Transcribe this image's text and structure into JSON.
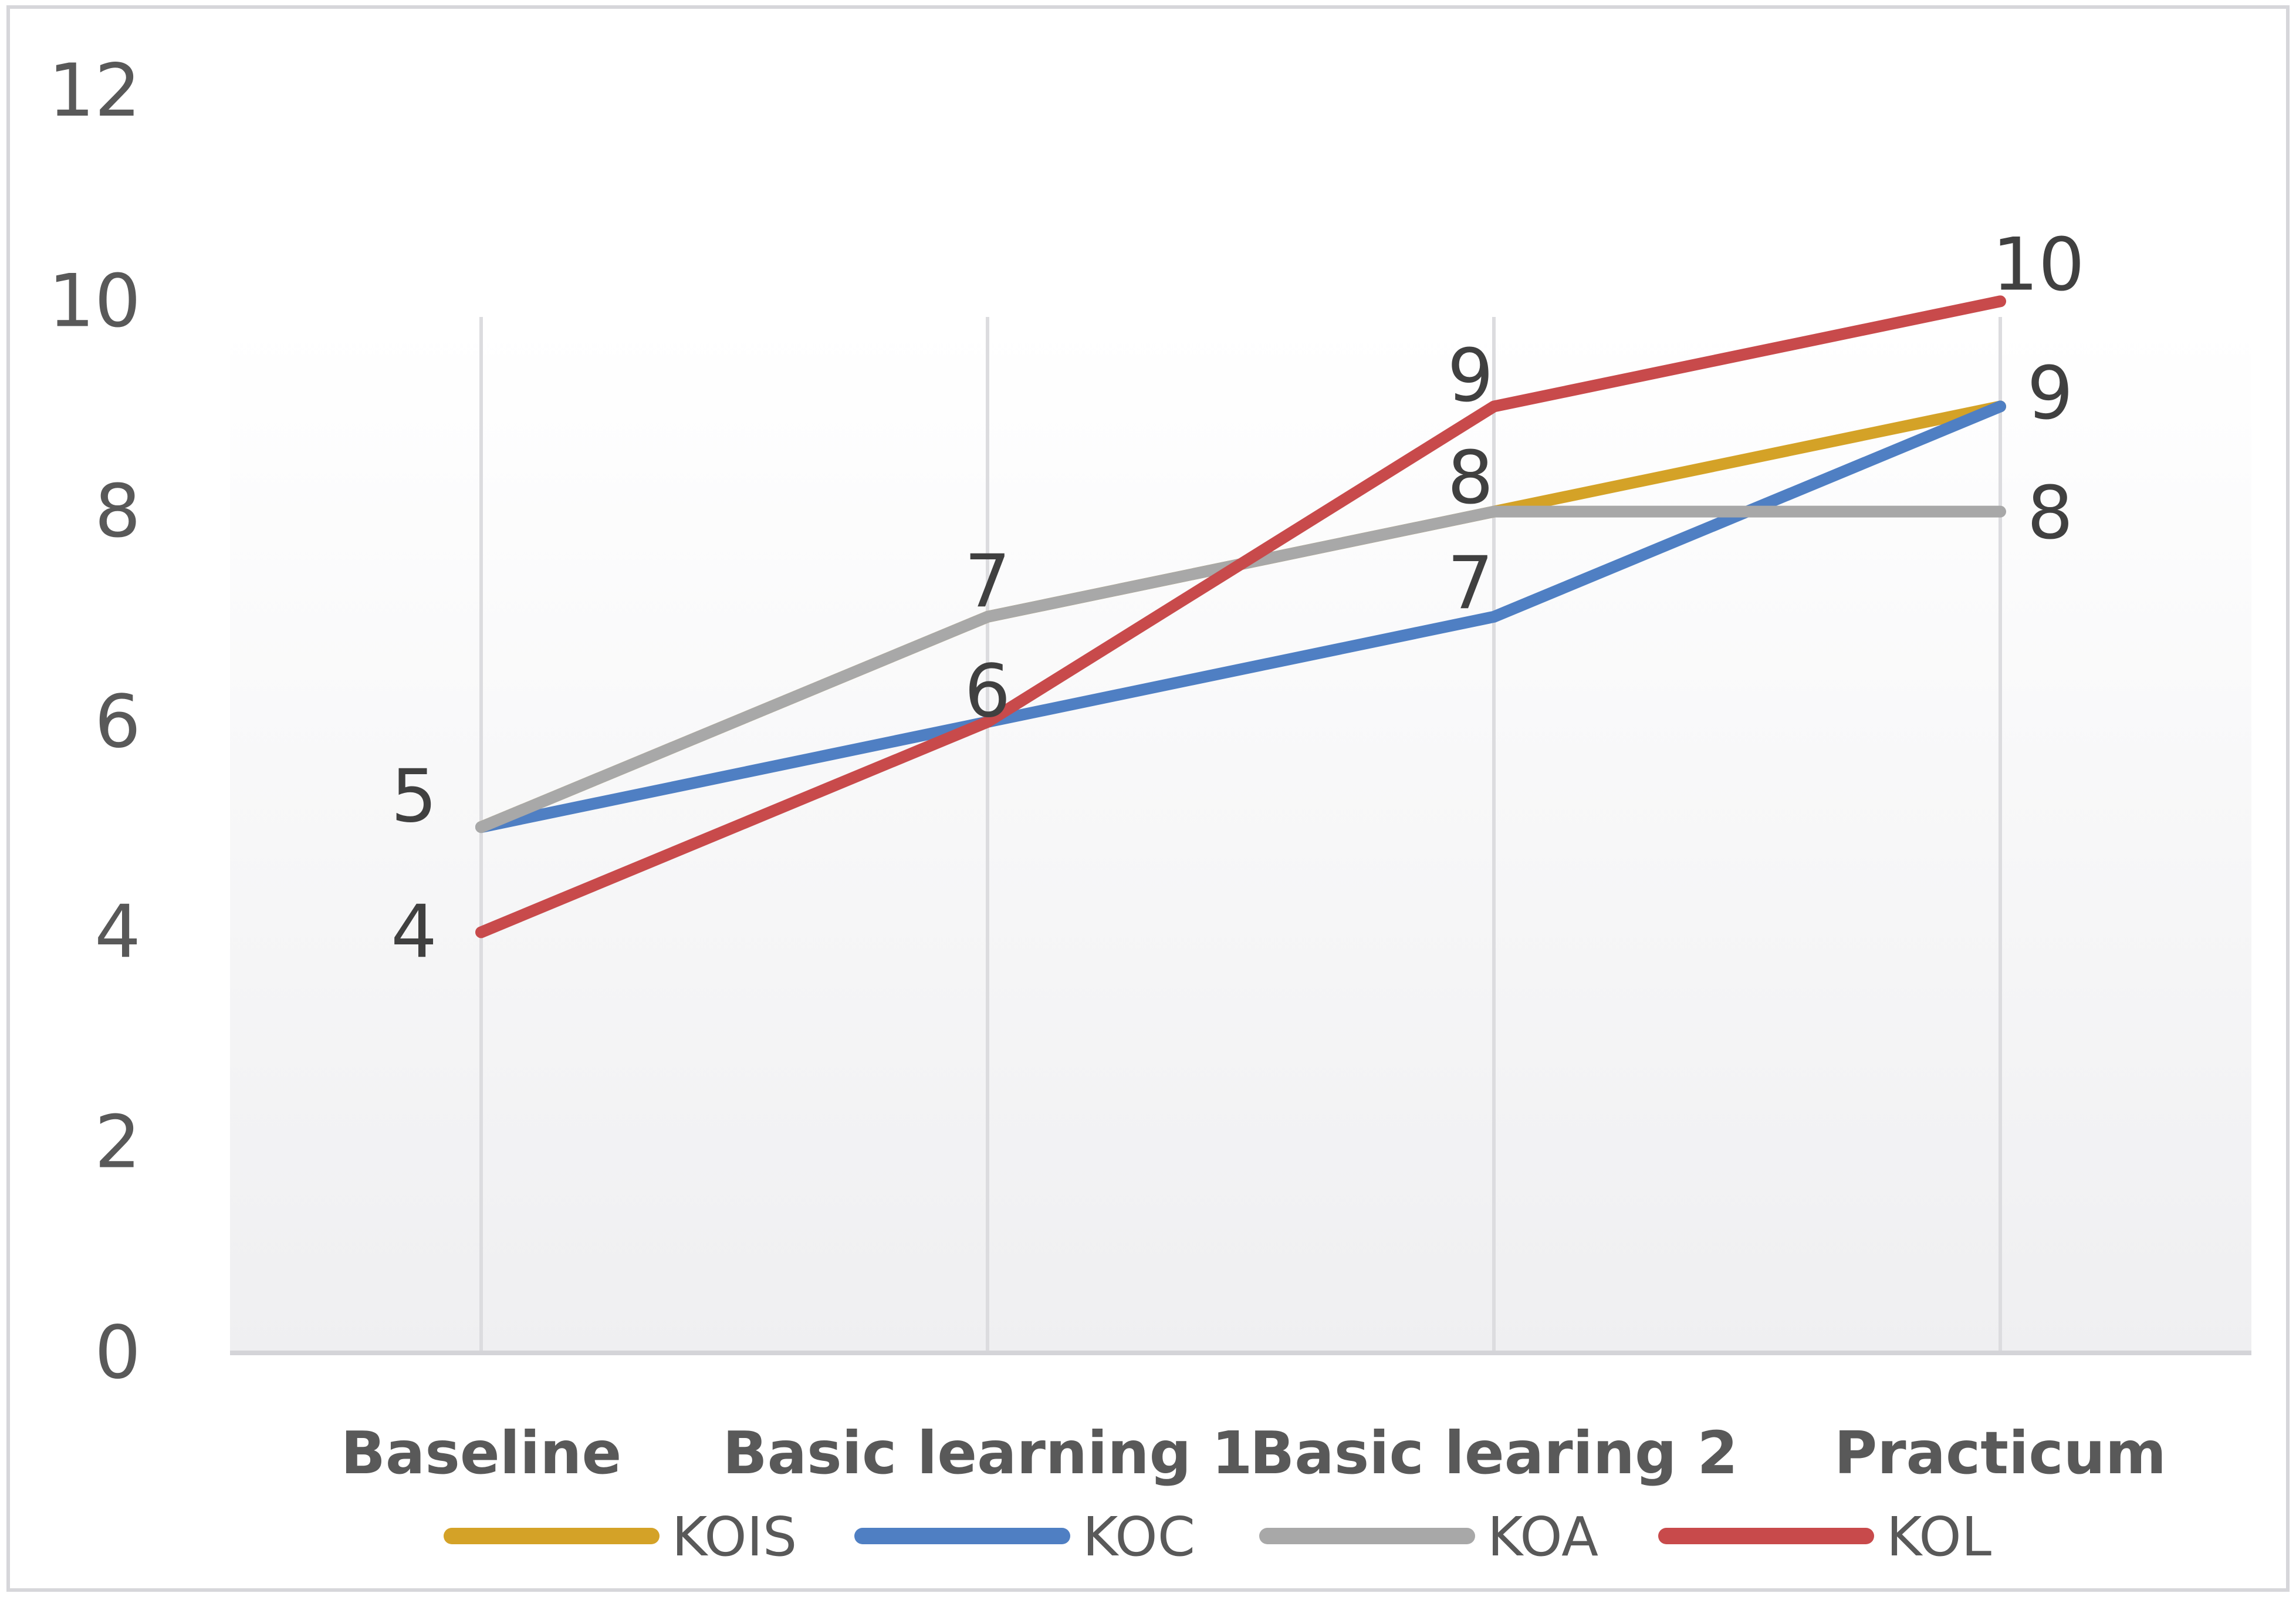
{
  "chart_data": {
    "type": "line",
    "categories": [
      "Baseline",
      "Basic learning 1",
      "Basic learing 2",
      "Practicum"
    ],
    "ylim": [
      0,
      12
    ],
    "yticks": [
      "0",
      "2",
      "4",
      "6",
      "8",
      "10",
      "12"
    ],
    "grid": "vertical",
    "legend_position": "bottom",
    "series": [
      {
        "name": "KOIS",
        "color": "#D4A227",
        "values": [
          5,
          7,
          8,
          9
        ]
      },
      {
        "name": "KOC",
        "color": "#4F7FC3",
        "values": [
          5,
          6,
          7,
          9
        ]
      },
      {
        "name": "KOA",
        "color": "#A8A8A8",
        "values": [
          5,
          7,
          8,
          8
        ]
      },
      {
        "name": "KOL",
        "color": "#C84A4B",
        "values": [
          4,
          6,
          9,
          10
        ]
      }
    ],
    "data_labels": [
      {
        "category": "Baseline",
        "label": "5",
        "value": 5
      },
      {
        "category": "Baseline",
        "label": "4",
        "value": 4
      },
      {
        "category": "Basic learning 1",
        "label": "7",
        "value": 7
      },
      {
        "category": "Basic learning 1",
        "label": "6",
        "value": 6
      },
      {
        "category": "Basic learing 2",
        "label": "9",
        "value": 9
      },
      {
        "category": "Basic learing 2",
        "label": "8",
        "value": 8
      },
      {
        "category": "Basic learing 2",
        "label": "7",
        "value": 7
      },
      {
        "category": "Practicum",
        "label": "10",
        "value": 10
      },
      {
        "category": "Practicum",
        "label": "9",
        "value": 9
      },
      {
        "category": "Practicum",
        "label": "8",
        "value": 8
      }
    ]
  }
}
